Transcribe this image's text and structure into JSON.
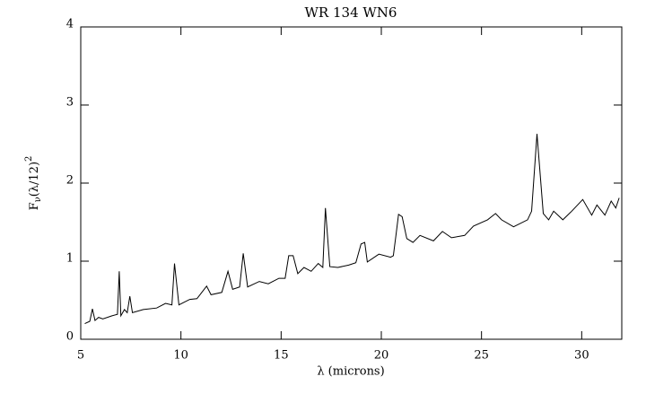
{
  "chart_data": {
    "type": "line",
    "title": "WR 134 WN6",
    "xlabel": "λ (microns)",
    "ylabel": {
      "base": "F",
      "sub": "ν",
      "mid": "(λ/12)",
      "sup": "2"
    },
    "color": "#000000",
    "x": [
      5.2,
      5.45,
      5.58,
      5.71,
      5.89,
      6.1,
      6.56,
      6.83,
      6.92,
      7.0,
      7.18,
      7.32,
      7.45,
      7.58,
      8.12,
      8.79,
      9.23,
      9.55,
      9.68,
      9.9,
      10.44,
      10.8,
      11.28,
      11.5,
      12.04,
      12.35,
      12.58,
      12.93,
      13.11,
      13.33,
      13.91,
      14.36,
      14.89,
      15.2,
      15.38,
      15.6,
      15.83,
      16.14,
      16.5,
      16.85,
      17.08,
      17.21,
      17.43,
      17.83,
      18.37,
      18.73,
      18.99,
      19.17,
      19.3,
      19.88,
      20.46,
      20.6,
      20.73,
      20.86,
      21.04,
      21.27,
      21.58,
      21.93,
      22.6,
      23.05,
      23.5,
      24.16,
      24.6,
      25.3,
      25.7,
      26.0,
      26.6,
      27.3,
      27.5,
      27.77,
      28.08,
      28.35,
      28.6,
      29.06,
      29.5,
      30.05,
      30.5,
      30.76,
      31.16,
      31.47,
      31.7,
      31.87
    ],
    "values": [
      0.2,
      0.23,
      0.39,
      0.24,
      0.28,
      0.26,
      0.3,
      0.32,
      0.87,
      0.3,
      0.38,
      0.34,
      0.55,
      0.34,
      0.38,
      0.4,
      0.46,
      0.44,
      0.97,
      0.44,
      0.51,
      0.52,
      0.68,
      0.57,
      0.6,
      0.87,
      0.64,
      0.67,
      1.1,
      0.67,
      0.74,
      0.71,
      0.78,
      0.78,
      1.07,
      1.07,
      0.84,
      0.92,
      0.87,
      0.97,
      0.92,
      1.68,
      0.93,
      0.92,
      0.95,
      0.98,
      1.22,
      1.24,
      0.99,
      1.09,
      1.05,
      1.07,
      1.33,
      1.6,
      1.57,
      1.29,
      1.24,
      1.33,
      1.26,
      1.38,
      1.3,
      1.33,
      1.45,
      1.53,
      1.61,
      1.53,
      1.44,
      1.53,
      1.64,
      2.63,
      1.61,
      1.53,
      1.64,
      1.53,
      1.64,
      1.79,
      1.59,
      1.72,
      1.59,
      1.77,
      1.68,
      1.81
    ],
    "xlim": [
      5,
      32
    ],
    "ylim": [
      0,
      4
    ],
    "xticks": [
      5,
      10,
      15,
      20,
      25,
      30
    ],
    "yticks": [
      0,
      1,
      2,
      3,
      4
    ],
    "grid": false
  }
}
